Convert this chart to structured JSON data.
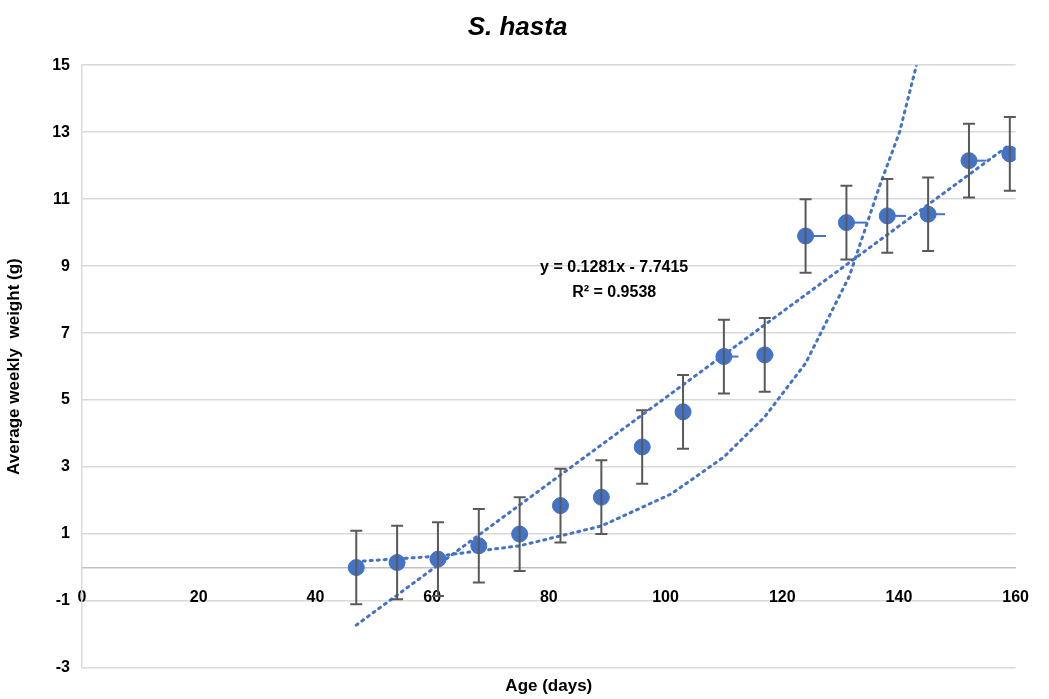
{
  "chart_data": {
    "type": "scatter",
    "title": "S. hasta",
    "xlabel": "Age (days)",
    "ylabel": "Average weekly  weight (g)",
    "xlim": [
      0,
      160
    ],
    "xticks": [
      0,
      20,
      40,
      60,
      80,
      100,
      120,
      140,
      160
    ],
    "ylim": [
      -3,
      15
    ],
    "yticks": [
      -3,
      -1,
      1,
      3,
      5,
      7,
      9,
      11,
      13,
      15
    ],
    "grid": "y",
    "x": [
      47,
      54,
      61,
      68,
      75,
      82,
      89,
      96,
      103,
      110,
      117,
      124,
      131,
      138,
      145,
      152,
      159
    ],
    "series": [
      {
        "color": "#4472c4",
        "marker": "circle",
        "values": [
          0.0,
          0.15,
          0.25,
          0.65,
          1.0,
          1.85,
          2.1,
          3.6,
          4.65,
          6.3,
          6.35,
          9.9,
          10.3,
          10.5,
          10.55,
          12.15,
          12.35
        ],
        "errors": [
          1.1,
          1.1,
          1.1,
          1.1,
          1.1,
          1.1,
          1.1,
          1.1,
          1.1,
          1.1,
          1.1,
          1.1,
          1.1,
          1.1,
          1.1,
          1.1,
          1.1
        ],
        "xerrors": [
          null,
          null,
          null,
          null,
          null,
          null,
          null,
          null,
          [
            103,
            104.2
          ],
          [
            110,
            112.5
          ],
          [
            117,
            118.5
          ],
          [
            124,
            127.5
          ],
          [
            131,
            134.5
          ],
          [
            138,
            141.2
          ],
          [
            145,
            147.9
          ],
          [
            152,
            154.9
          ],
          null
        ]
      },
      {
        "type": "line",
        "color": "#4472c4",
        "marker": "none",
        "line_style": "dotted",
        "x": [
          47,
          159
        ],
        "values": [
          -1.72,
          12.63
        ]
      },
      {
        "type": "line",
        "color": "#4472c4",
        "marker": "none",
        "line_style": "dotted",
        "x": [
          47,
          61,
          75,
          89,
          101,
          110,
          117,
          124,
          131.5,
          136.7,
          140.1,
          143
        ],
        "values": [
          0.18,
          0.34,
          0.65,
          1.24,
          2.2,
          3.3,
          4.5,
          6.1,
          8.7,
          11.4,
          13.0,
          15.0
        ]
      }
    ],
    "annotations": [
      "y = 0.1281x - 7.7415",
      "R² = 0.9538"
    ]
  }
}
